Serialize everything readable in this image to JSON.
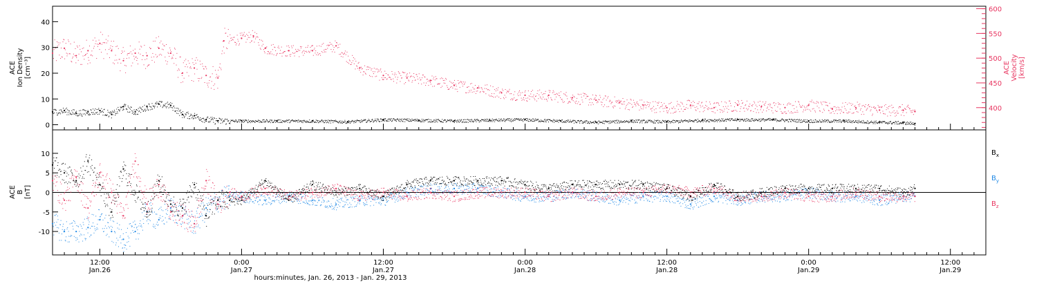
{
  "colors": {
    "density": "#000000",
    "velocity": "#e8345f",
    "bx": "#000000",
    "by": "#1e88e5",
    "bz": "#e8345f",
    "frame": "#000000"
  },
  "x_axis": {
    "title": "hours:minutes, Jan. 26, 2013 - Jan. 29, 2013",
    "ticks": [
      {
        "t": 12,
        "time": "12:00",
        "date": "Jan.26"
      },
      {
        "t": 24,
        "time": "0:00",
        "date": "Jan.27"
      },
      {
        "t": 36,
        "time": "12:00",
        "date": "Jan.27"
      },
      {
        "t": 48,
        "time": "0:00",
        "date": "Jan.28"
      },
      {
        "t": 60,
        "time": "12:00",
        "date": "Jan.28"
      },
      {
        "t": 72,
        "time": "0:00",
        "date": "Jan.29"
      },
      {
        "t": 84,
        "time": "12:00",
        "date": "Jan.29"
      }
    ],
    "range_hours_from_jan26_0000": [
      8,
      87
    ]
  },
  "chart_data": [
    {
      "type": "scatter",
      "panel": "top",
      "ylabel_left": [
        "ACE",
        "Ion Density",
        "[cm⁻³]"
      ],
      "ylabel_right": [
        "ACE",
        "Velocity",
        "[km/s]"
      ],
      "ylim_left": [
        -2,
        46
      ],
      "yticks_left": [
        0,
        10,
        20,
        30,
        40
      ],
      "ylim_right": [
        355,
        605
      ],
      "yticks_right": [
        400,
        450,
        500,
        550,
        600
      ],
      "series": [
        {
          "axis": "left",
          "x": [
            8,
            9,
            10,
            11,
            12,
            13,
            14,
            15,
            16,
            17,
            18,
            19,
            20,
            21,
            22,
            24,
            27,
            30,
            33,
            36,
            39,
            42,
            45,
            48,
            51,
            54,
            57,
            60,
            63,
            66,
            69,
            72,
            75,
            78,
            80,
            81
          ],
          "values": [
            5,
            5.5,
            4.5,
            5,
            5.5,
            4,
            7,
            5,
            7,
            8,
            7.5,
            4,
            3.5,
            2,
            1.5,
            1.5,
            1.5,
            1.5,
            1.2,
            2,
            1.8,
            1.5,
            1.8,
            2,
            1.5,
            1,
            1.5,
            1.2,
            1.8,
            2,
            2,
            1.5,
            1.5,
            1,
            0.8,
            0.5
          ]
        },
        {
          "axis": "right",
          "x": [
            8,
            9,
            10,
            11,
            12,
            13,
            14,
            15,
            16,
            17,
            18,
            19,
            20,
            21,
            22,
            22.5,
            24,
            25,
            26,
            28,
            30,
            32,
            34,
            36,
            38,
            40,
            42,
            44,
            46,
            48,
            50,
            52,
            54,
            56,
            58,
            60,
            62,
            64,
            66,
            68,
            70,
            72,
            74,
            76,
            78,
            80,
            81
          ],
          "values": [
            510,
            520,
            505,
            515,
            530,
            515,
            495,
            510,
            505,
            520,
            510,
            470,
            480,
            465,
            460,
            535,
            540,
            545,
            520,
            515,
            515,
            525,
            480,
            465,
            460,
            455,
            445,
            440,
            430,
            425,
            425,
            420,
            415,
            410,
            405,
            400,
            405,
            400,
            405,
            402,
            400,
            405,
            398,
            400,
            395,
            395,
            392
          ]
        }
      ]
    },
    {
      "type": "scatter",
      "panel": "bottom",
      "ylabel": [
        "ACE",
        "B",
        "[nT]"
      ],
      "ylim": [
        -16,
        16
      ],
      "yticks": [
        -10,
        -5,
        0,
        5,
        10
      ],
      "series": [
        {
          "name": "Bx",
          "x": [
            8,
            9,
            10,
            11,
            12,
            13,
            14,
            15,
            16,
            17,
            18,
            19,
            20,
            21,
            22,
            23,
            24,
            26,
            28,
            30,
            32,
            34,
            36,
            38,
            40,
            42,
            44,
            46,
            48,
            50,
            52,
            54,
            56,
            58,
            60,
            62,
            64,
            66,
            68,
            70,
            72,
            74,
            76,
            78,
            80,
            81
          ],
          "values": [
            7,
            5,
            3,
            8,
            2,
            -5,
            6,
            0,
            -5,
            3,
            -3,
            -4,
            2,
            -6,
            -2,
            -2,
            -2,
            3,
            -2,
            2,
            0,
            1,
            -1,
            2,
            3,
            3,
            3,
            3,
            2,
            1,
            2,
            2,
            2,
            2,
            1,
            -1,
            2,
            -1,
            0,
            1,
            1,
            1,
            1,
            1,
            0,
            1
          ]
        },
        {
          "name": "By",
          "x": [
            8,
            9,
            10,
            11,
            12,
            13,
            14,
            15,
            16,
            17,
            18,
            19,
            20,
            21,
            22,
            23,
            24,
            26,
            28,
            30,
            32,
            34,
            36,
            38,
            40,
            42,
            44,
            46,
            48,
            50,
            52,
            54,
            56,
            58,
            60,
            62,
            64,
            66,
            68,
            70,
            72,
            74,
            76,
            78,
            80,
            81
          ],
          "values": [
            -8,
            -10,
            -10,
            -9,
            -7,
            -10,
            -12,
            -10,
            -5,
            -7,
            -4,
            -6,
            -8,
            -4,
            -2,
            -1,
            -1,
            -2,
            -1,
            -2,
            -3,
            -2,
            -2,
            0,
            1,
            1,
            1,
            0,
            -1,
            -1,
            0,
            -1,
            -2,
            -1,
            -1,
            -3,
            -1,
            -2,
            -1,
            -1,
            0,
            -1,
            -1,
            -2,
            -1,
            -1
          ]
        },
        {
          "name": "Bz",
          "x": [
            8,
            9,
            10,
            11,
            12,
            13,
            14,
            15,
            16,
            17,
            18,
            19,
            20,
            21,
            22,
            23,
            24,
            26,
            28,
            30,
            32,
            34,
            36,
            38,
            40,
            42,
            44,
            46,
            48,
            50,
            52,
            54,
            56,
            58,
            60,
            62,
            64,
            66,
            68,
            70,
            72,
            74,
            76,
            78,
            80,
            81
          ],
          "values": [
            3,
            -2,
            4,
            -4,
            5,
            0,
            -6,
            8,
            -3,
            2,
            -5,
            -6,
            -8,
            3,
            -3,
            0,
            -1,
            1,
            -1,
            0,
            1,
            -1,
            0,
            -1,
            0,
            -1,
            0,
            0,
            0,
            -1,
            0,
            -1,
            0,
            0,
            1,
            0,
            1,
            -1,
            -1,
            0,
            -1,
            -1,
            0,
            -1,
            -1,
            -1
          ]
        }
      ],
      "legend": [
        {
          "base": "B",
          "sub": "x",
          "color": "#000000"
        },
        {
          "base": "B",
          "sub": "y",
          "color": "#1e88e5"
        },
        {
          "base": "B",
          "sub": "z",
          "color": "#e8345f"
        }
      ],
      "legend_placement": "right"
    }
  ]
}
